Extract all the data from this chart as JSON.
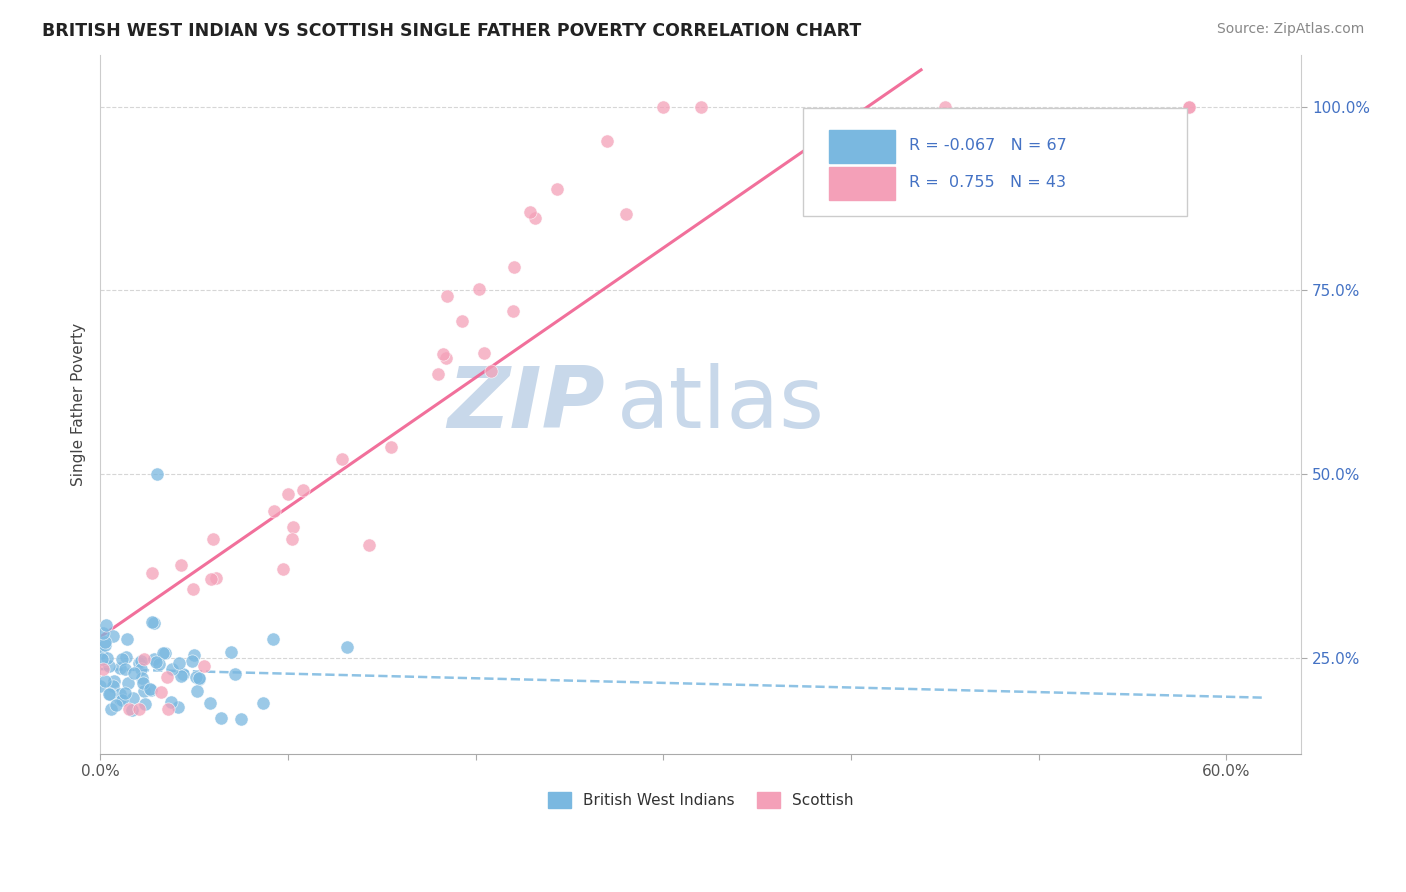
{
  "title": "BRITISH WEST INDIAN VS SCOTTISH SINGLE FATHER POVERTY CORRELATION CHART",
  "source_text": "Source: ZipAtlas.com",
  "ylabel": "Single Father Poverty",
  "yticks": [
    0.25,
    0.5,
    0.75,
    1.0
  ],
  "ytick_labels": [
    "25.0%",
    "50.0%",
    "75.0%",
    "100.0%"
  ],
  "xticks": [
    0.0,
    0.1,
    0.2,
    0.3,
    0.4,
    0.5,
    0.6
  ],
  "xlim": [
    0.0,
    0.64
  ],
  "ylim": [
    0.12,
    1.07
  ],
  "legend_R1": "-0.067",
  "legend_N1": "67",
  "legend_R2": "0.755",
  "legend_N2": "43",
  "color_blue": "#7ab8e0",
  "color_pink": "#f4a0b8",
  "trend_blue_color": "#7ab8e0",
  "trend_pink_color": "#f06090",
  "watermark_zip": "ZIP",
  "watermark_atlas": "atlas",
  "watermark_color": "#c8d8ea",
  "legend_label1": "British West Indians",
  "legend_label2": "Scottish"
}
